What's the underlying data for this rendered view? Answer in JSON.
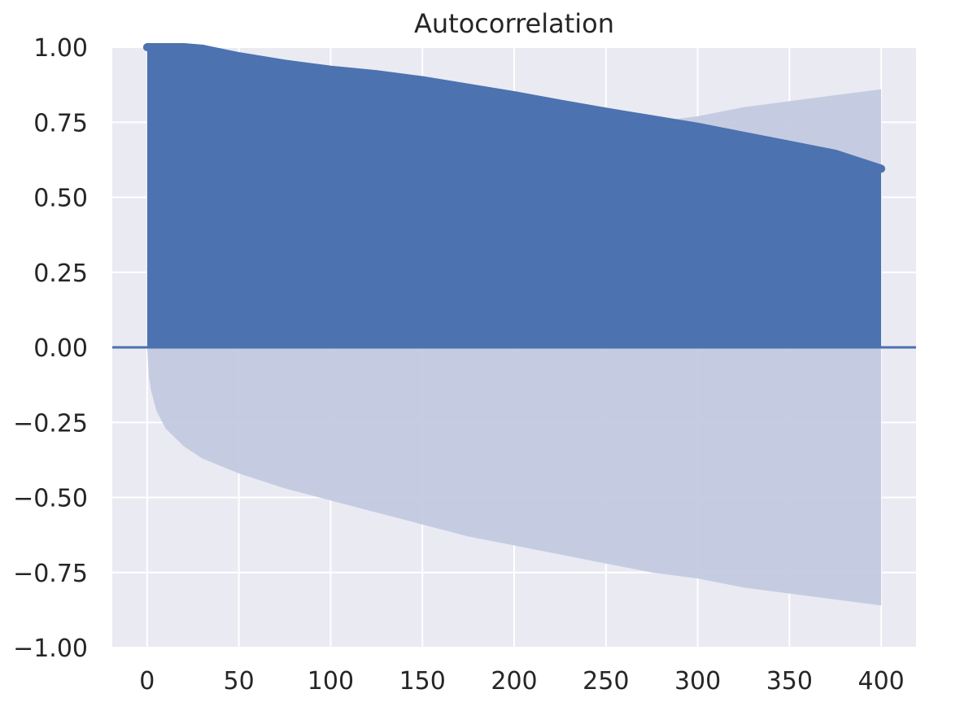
{
  "chart_data": {
    "type": "area",
    "subtype": "autocorrelation-stem",
    "title": "Autocorrelation",
    "xlabel": "",
    "ylabel": "",
    "xlim": [
      -19,
      419
    ],
    "ylim": [
      -1.0,
      1.0
    ],
    "x_ticks": [
      0,
      50,
      100,
      150,
      200,
      250,
      300,
      350,
      400
    ],
    "x_tick_labels": [
      "0",
      "50",
      "100",
      "150",
      "200",
      "250",
      "300",
      "350",
      "400"
    ],
    "y_ticks": [
      1.0,
      0.75,
      0.5,
      0.25,
      0.0,
      -0.25,
      -0.5,
      -0.75,
      -1.0
    ],
    "y_tick_labels": [
      "1.00",
      "0.75",
      "0.50",
      "0.25",
      "0.00",
      "−0.25",
      "−0.50",
      "−0.75",
      "−1.00"
    ],
    "grid": true,
    "legend": "none",
    "lags": {
      "start": 0,
      "end": 400
    },
    "acf_curve": {
      "x": [
        0,
        10,
        20,
        30,
        50,
        75,
        100,
        125,
        150,
        175,
        200,
        225,
        250,
        275,
        300,
        325,
        350,
        375,
        400
      ],
      "y": [
        1.0,
        1.0,
        1.0,
        0.995,
        0.97,
        0.945,
        0.925,
        0.91,
        0.89,
        0.865,
        0.84,
        0.812,
        0.785,
        0.76,
        0.735,
        0.705,
        0.675,
        0.645,
        0.595
      ]
    },
    "confidence_band": {
      "x": [
        0,
        1,
        2,
        5,
        10,
        20,
        30,
        50,
        75,
        100,
        125,
        150,
        175,
        200,
        225,
        250,
        275,
        300,
        325,
        350,
        375,
        400
      ],
      "upper": [
        0.0,
        0.1,
        0.14,
        0.21,
        0.27,
        0.33,
        0.37,
        0.42,
        0.47,
        0.51,
        0.55,
        0.59,
        0.63,
        0.66,
        0.69,
        0.72,
        0.75,
        0.77,
        0.8,
        0.82,
        0.84,
        0.86
      ],
      "lower": [
        0.0,
        -0.1,
        -0.14,
        -0.21,
        -0.27,
        -0.33,
        -0.37,
        -0.42,
        -0.47,
        -0.51,
        -0.55,
        -0.59,
        -0.63,
        -0.66,
        -0.69,
        -0.72,
        -0.75,
        -0.77,
        -0.8,
        -0.82,
        -0.84,
        -0.86
      ]
    },
    "colors": {
      "series": "#4c72b0",
      "band": "#c3cae0",
      "axes_background": "#eaeaf2",
      "grid": "#ffffff",
      "text": "#262626"
    }
  }
}
